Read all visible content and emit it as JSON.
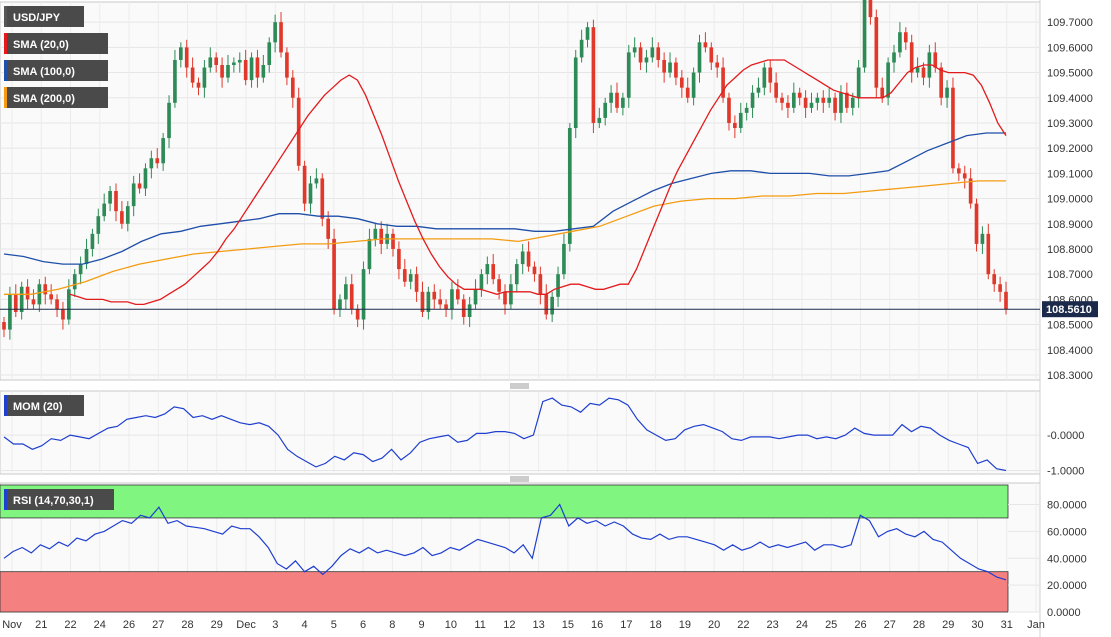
{
  "colors": {
    "up": "#2e8b57",
    "down": "#e0392b",
    "sma20": "#e31a1c",
    "sma100": "#1f4fa8",
    "sma200": "#f39c12",
    "mom": "#1f3fcf",
    "rsi": "#1f3fcf",
    "rsi_overbought": "#80f580",
    "rsi_oversold": "#f58080",
    "label_bg": "#4a4a4a",
    "last_price_bg": "#1b2a4a"
  },
  "chart_data": [
    {
      "type": "candlestick",
      "symbol": "USD/JPY",
      "legend": [
        {
          "label": "USD/JPY",
          "color": "#555555"
        },
        {
          "label": "SMA (20,0)",
          "color": "#e31a1c"
        },
        {
          "label": "SMA (100,0)",
          "color": "#1f4fa8"
        },
        {
          "label": "SMA (200,0)",
          "color": "#f39c12"
        }
      ],
      "y_ticks": [
        "109.7000",
        "109.6000",
        "109.5000",
        "109.4000",
        "109.3000",
        "109.2000",
        "109.1000",
        "109.0000",
        "108.9000",
        "108.8000",
        "108.7000",
        "108.6000",
        "108.5000",
        "108.4000",
        "108.3000"
      ],
      "ylim": [
        108.28,
        109.78
      ],
      "last_price": 108.561,
      "last_price_label": "108.5610",
      "x_ticks": [
        "Nov",
        "21",
        "22",
        "24",
        "26",
        "27",
        "28",
        "29",
        "Dec",
        "3",
        "4",
        "5",
        "6",
        "8",
        "9",
        "10",
        "11",
        "12",
        "13",
        "15",
        "16",
        "17",
        "18",
        "19",
        "20",
        "22",
        "23",
        "24",
        "25",
        "26",
        "27",
        "28",
        "29",
        "30",
        "31",
        "Jan"
      ],
      "closes": [
        108.48,
        108.62,
        108.55,
        108.65,
        108.6,
        108.58,
        108.66,
        108.62,
        108.6,
        108.56,
        108.52,
        108.64,
        108.7,
        108.74,
        108.8,
        108.86,
        108.93,
        108.98,
        109.03,
        108.95,
        108.9,
        108.97,
        109.06,
        109.04,
        109.12,
        109.16,
        109.14,
        109.24,
        109.38,
        109.55,
        109.6,
        109.52,
        109.46,
        109.44,
        109.52,
        109.56,
        109.53,
        109.48,
        109.53,
        109.54,
        109.55,
        109.47,
        109.56,
        109.48,
        109.53,
        109.62,
        109.7,
        109.58,
        109.48,
        109.4,
        109.13,
        108.98,
        109.06,
        109.08,
        108.92,
        108.84,
        108.56,
        108.6,
        108.66,
        108.56,
        108.52,
        108.72,
        108.84,
        108.88,
        108.82,
        108.86,
        108.8,
        108.72,
        108.67,
        108.7,
        108.63,
        108.55,
        108.63,
        108.6,
        108.58,
        108.56,
        108.64,
        108.6,
        108.53,
        108.58,
        108.64,
        108.7,
        108.74,
        108.68,
        108.63,
        108.58,
        108.66,
        108.74,
        108.79,
        108.73,
        108.7,
        108.62,
        108.54,
        108.61,
        108.7,
        108.82,
        109.28,
        109.56,
        109.63,
        109.68,
        109.3,
        109.32,
        109.38,
        109.42,
        109.36,
        109.4,
        109.58,
        109.6,
        109.54,
        109.56,
        109.6,
        109.55,
        109.5,
        109.54,
        109.48,
        109.44,
        109.4,
        109.5,
        109.62,
        109.6,
        109.54,
        109.52,
        109.4,
        109.3,
        109.28,
        109.34,
        109.36,
        109.42,
        109.44,
        109.52,
        109.46,
        109.4,
        109.38,
        109.36,
        109.42,
        109.4,
        109.36,
        109.38,
        109.4,
        109.38,
        109.4,
        109.34,
        109.42,
        109.36,
        109.4,
        109.52,
        109.8,
        109.72,
        109.44,
        109.4,
        109.54,
        109.58,
        109.66,
        109.62,
        109.5,
        109.52,
        109.48,
        109.58,
        109.52,
        109.4,
        109.44,
        109.12,
        109.1,
        109.08,
        108.98,
        108.82,
        108.86,
        108.7,
        108.66,
        108.63,
        108.56
      ],
      "sma20": [
        108.62,
        108.61,
        108.6,
        108.6,
        108.6,
        108.59,
        108.59,
        108.59,
        108.58,
        108.58,
        108.59,
        108.6,
        108.62,
        108.64,
        108.66,
        108.69,
        108.72,
        108.75,
        108.79,
        108.84,
        108.88,
        108.93,
        108.98,
        109.03,
        109.08,
        109.13,
        109.18,
        109.23,
        109.28,
        109.33,
        109.37,
        109.41,
        109.44,
        109.47,
        109.49,
        109.47,
        109.41,
        109.33,
        109.25,
        109.16,
        109.07,
        108.99,
        108.91,
        108.84,
        108.78,
        108.73,
        108.69,
        108.66,
        108.64,
        108.64,
        108.64,
        108.63,
        108.62,
        108.63,
        108.63,
        108.63,
        108.63,
        108.62,
        108.62,
        108.64,
        108.65,
        108.66,
        108.66,
        108.65,
        108.64,
        108.64,
        108.65,
        108.66,
        108.66,
        108.72,
        108.8,
        108.88,
        108.96,
        109.04,
        109.11,
        109.17,
        109.23,
        109.29,
        109.35,
        109.4,
        109.45,
        109.48,
        109.51,
        109.53,
        109.54,
        109.55,
        109.55,
        109.55,
        109.53,
        109.51,
        109.49,
        109.47,
        109.45,
        109.43,
        109.42,
        109.41,
        109.4,
        109.4,
        109.4,
        109.4,
        109.42,
        109.46,
        109.5,
        109.52,
        109.53,
        109.53,
        109.51,
        109.5,
        109.5,
        109.5,
        109.49,
        109.45,
        109.38,
        109.3,
        109.25
      ],
      "sma100": [
        108.78,
        108.77,
        108.75,
        108.74,
        108.74,
        108.76,
        108.79,
        108.83,
        108.86,
        108.87,
        108.89,
        108.9,
        108.91,
        108.92,
        108.94,
        108.94,
        108.93,
        108.93,
        108.92,
        108.9,
        108.89,
        108.89,
        108.88,
        108.88,
        108.88,
        108.88,
        108.88,
        108.87,
        108.87,
        108.88,
        108.89,
        108.95,
        108.99,
        109.03,
        109.06,
        109.08,
        109.1,
        109.11,
        109.11,
        109.1,
        109.1,
        109.1,
        109.09,
        109.09,
        109.1,
        109.11,
        109.15,
        109.19,
        109.22,
        109.25,
        109.26,
        109.26
      ],
      "sma200": [
        108.62,
        108.62,
        108.64,
        108.67,
        108.71,
        108.74,
        108.76,
        108.78,
        108.79,
        108.8,
        108.81,
        108.82,
        108.82,
        108.83,
        108.84,
        108.84,
        108.84,
        108.84,
        108.84,
        108.83,
        108.85,
        108.87,
        108.89,
        108.93,
        108.97,
        108.99,
        109.0,
        109.0,
        109.01,
        109.01,
        109.02,
        109.02,
        109.03,
        109.04,
        109.05,
        109.06,
        109.07,
        109.07
      ]
    },
    {
      "type": "line",
      "name": "MOM (20)",
      "y_ticks": [
        "-0.0000",
        "-1.0000"
      ],
      "ylim": [
        -1.1,
        1.25
      ],
      "values": [
        -0.05,
        -0.25,
        -0.25,
        -0.4,
        -0.3,
        -0.1,
        -0.15,
        0.0,
        -0.05,
        -0.1,
        0.05,
        0.2,
        0.25,
        0.45,
        0.5,
        0.55,
        0.5,
        0.6,
        0.8,
        0.75,
        0.5,
        0.55,
        0.45,
        0.55,
        0.45,
        0.35,
        0.3,
        0.35,
        0.25,
        0.0,
        -0.4,
        -0.6,
        -0.75,
        -0.9,
        -0.8,
        -0.6,
        -0.7,
        -0.5,
        -0.55,
        -0.75,
        -0.65,
        -0.4,
        -0.7,
        -0.5,
        -0.2,
        -0.1,
        -0.05,
        0.0,
        -0.2,
        -0.15,
        0.05,
        0.05,
        0.1,
        0.1,
        0.05,
        -0.1,
        0.0,
        0.95,
        1.05,
        0.85,
        0.8,
        0.65,
        0.9,
        0.85,
        1.05,
        1.0,
        0.85,
        0.45,
        0.15,
        0.0,
        -0.15,
        -0.1,
        0.15,
        0.25,
        0.3,
        0.2,
        0.1,
        -0.1,
        -0.15,
        -0.05,
        -0.05,
        -0.05,
        -0.1,
        -0.05,
        0.0,
        0.0,
        -0.1,
        -0.05,
        -0.1,
        0.0,
        0.2,
        0.05,
        0.0,
        0.0,
        0.0,
        0.3,
        0.1,
        0.25,
        0.2,
        0.0,
        -0.15,
        -0.25,
        -0.35,
        -0.8,
        -0.7,
        -0.95,
        -1.0
      ]
    },
    {
      "type": "line",
      "name": "RSI (14,70,30,1)",
      "y_ticks": [
        "80.0000",
        "60.0000",
        "40.0000",
        "20.0000",
        "0.0000"
      ],
      "ylim": [
        0,
        96
      ],
      "overbought": 70,
      "oversold": 30,
      "values": [
        40,
        45,
        48,
        44,
        50,
        47,
        52,
        49,
        55,
        53,
        58,
        60,
        64,
        68,
        66,
        72,
        70,
        78,
        66,
        68,
        64,
        63,
        62,
        60,
        58,
        64,
        62,
        62,
        56,
        48,
        36,
        32,
        38,
        30,
        34,
        28,
        34,
        42,
        47,
        44,
        48,
        44,
        46,
        44,
        42,
        44,
        48,
        42,
        44,
        48,
        46,
        50,
        54,
        52,
        50,
        48,
        44,
        50,
        40,
        70,
        72,
        80,
        64,
        70,
        66,
        68,
        64,
        67,
        64,
        58,
        55,
        54,
        58,
        54,
        56,
        56,
        54,
        52,
        50,
        46,
        50,
        46,
        48,
        52,
        48,
        50,
        48,
        50,
        52,
        46,
        50,
        50,
        48,
        50,
        72,
        68,
        56,
        60,
        62,
        58,
        56,
        60,
        54,
        52,
        46,
        40,
        36,
        32,
        30,
        26,
        24
      ]
    }
  ]
}
